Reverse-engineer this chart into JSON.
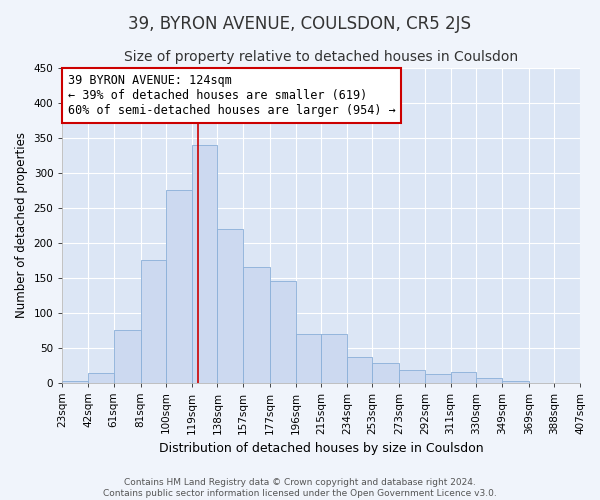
{
  "title": "39, BYRON AVENUE, COULSDON, CR5 2JS",
  "subtitle": "Size of property relative to detached houses in Coulsdon",
  "xlabel": "Distribution of detached houses by size in Coulsdon",
  "ylabel": "Number of detached properties",
  "bin_labels": [
    "23sqm",
    "42sqm",
    "61sqm",
    "81sqm",
    "100sqm",
    "119sqm",
    "138sqm",
    "157sqm",
    "177sqm",
    "196sqm",
    "215sqm",
    "234sqm",
    "253sqm",
    "273sqm",
    "292sqm",
    "311sqm",
    "330sqm",
    "349sqm",
    "369sqm",
    "388sqm",
    "407sqm"
  ],
  "bar_heights": [
    2,
    13,
    75,
    175,
    275,
    340,
    220,
    165,
    145,
    70,
    70,
    36,
    28,
    18,
    12,
    15,
    7,
    2,
    0,
    0,
    0
  ],
  "bin_edges": [
    23,
    42,
    61,
    81,
    100,
    119,
    138,
    157,
    177,
    196,
    215,
    234,
    253,
    273,
    292,
    311,
    330,
    349,
    369,
    388,
    407
  ],
  "bar_color": "#ccd9f0",
  "bar_edge_color": "#8aafd8",
  "vline_x": 124,
  "vline_color": "#cc0000",
  "annotation_text": "39 BYRON AVENUE: 124sqm\n← 39% of detached houses are smaller (619)\n60% of semi-detached houses are larger (954) →",
  "annotation_box_color": "#ffffff",
  "annotation_box_edge": "#cc0000",
  "ylim": [
    0,
    450
  ],
  "yticks": [
    0,
    50,
    100,
    150,
    200,
    250,
    300,
    350,
    400,
    450
  ],
  "bg_color": "#dce6f5",
  "plot_bg_color": "#dce6f5",
  "fig_bg_color": "#f0f4fb",
  "grid_color": "#ffffff",
  "footer_line1": "Contains HM Land Registry data © Crown copyright and database right 2024.",
  "footer_line2": "Contains public sector information licensed under the Open Government Licence v3.0.",
  "title_fontsize": 12,
  "subtitle_fontsize": 10,
  "annotation_fontsize": 8.5,
  "ylabel_fontsize": 8.5,
  "xlabel_fontsize": 9,
  "tick_fontsize": 7.5,
  "footer_fontsize": 6.5
}
